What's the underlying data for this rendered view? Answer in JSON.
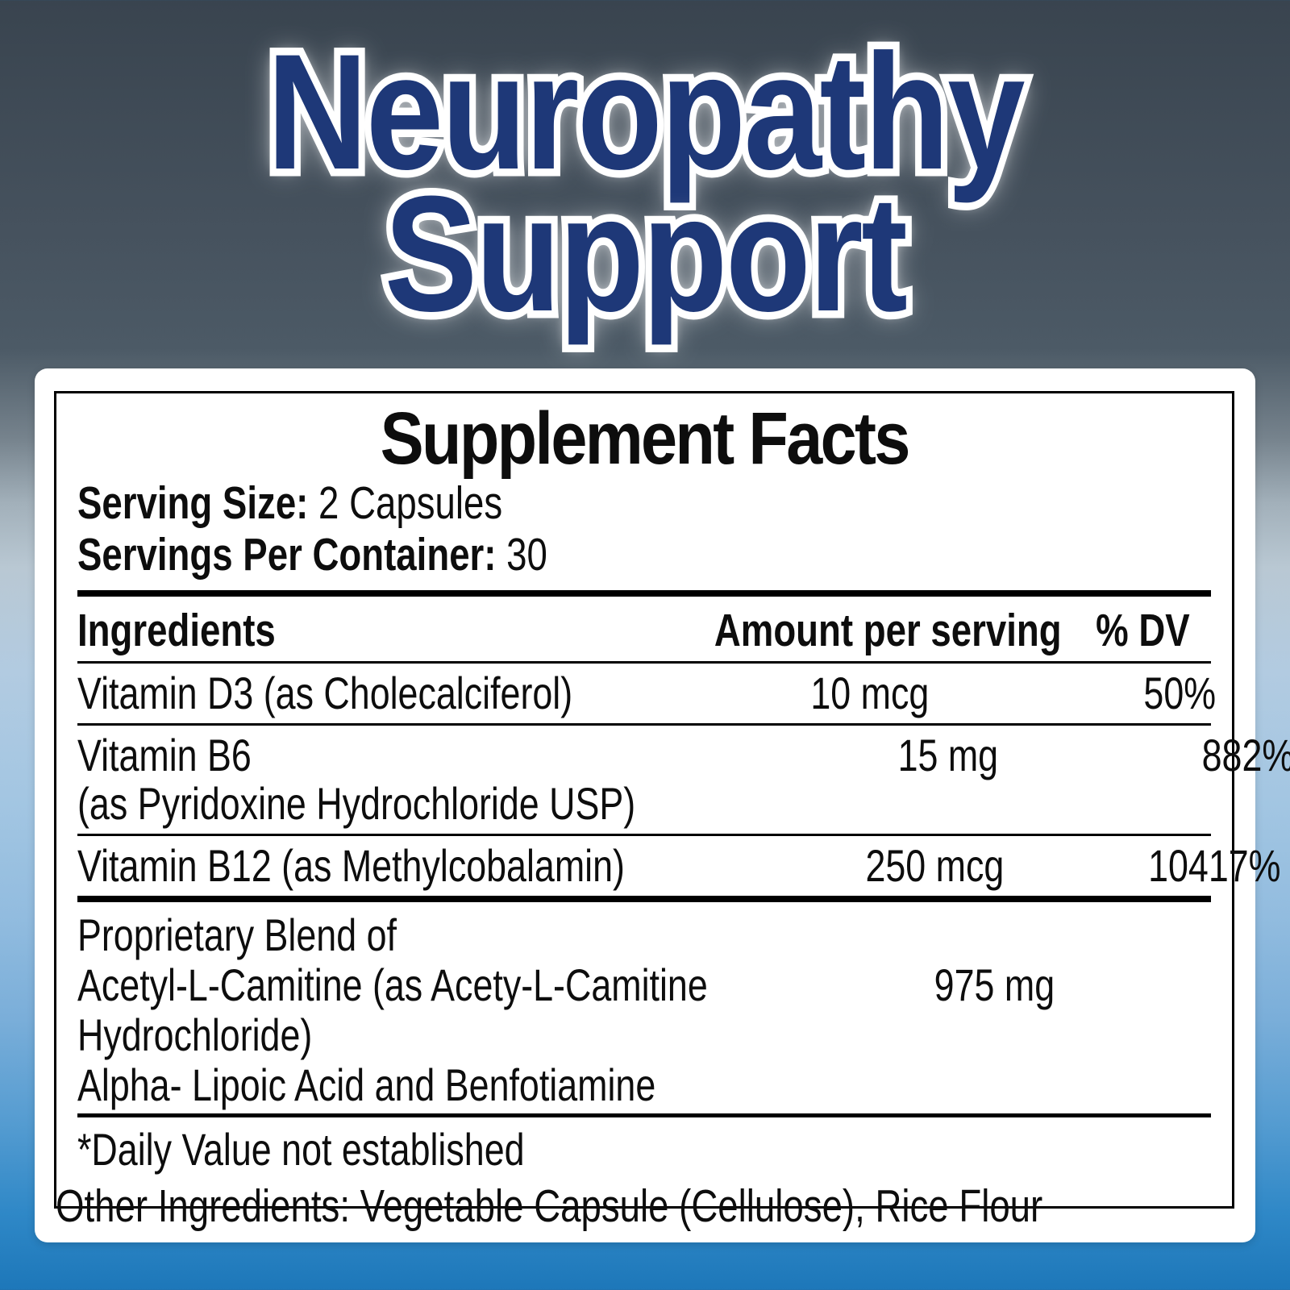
{
  "title": {
    "line1": "Neuropathy",
    "line2": "Support"
  },
  "colors": {
    "title_blue": "#1e3878",
    "title_outline": "#ffffff",
    "bottom_blue": "#1d77b9",
    "panel_bg": "#ffffff",
    "text": "#0d0d0d"
  },
  "panel": {
    "heading": "Supplement Facts",
    "serving_size_label": "Serving Size:",
    "serving_size_value": "2 Capsules",
    "servings_per_container_label": "Servings Per Container:",
    "servings_per_container_value": "30",
    "columns": {
      "ingredients": "Ingredients",
      "amount": "Amount per serving",
      "dv": "% DV"
    },
    "rows": [
      {
        "name": "Vitamin D3 (as Cholecalciferol)",
        "name2": "",
        "amount": "10 mcg",
        "dv": "50%"
      },
      {
        "name": "Vitamin B6",
        "name2": "(as Pyridoxine Hydrochloride USP)",
        "amount": "15 mg",
        "dv": "882%"
      },
      {
        "name": "Vitamin B12 (as Methylcobalamin)",
        "name2": "",
        "amount": "250 mcg",
        "dv": "10417%"
      }
    ],
    "blend": {
      "line1": "Proprietary Blend of",
      "line2": "Acetyl-L-Camitine (as Acety-L-Camitine",
      "line3": "Hydrochloride)",
      "line4": "Alpha- Lipoic Acid and Benfotiamine",
      "amount": "975 mg",
      "dv": "*"
    },
    "footnote": "*Daily Value not established",
    "other_ingredients": "Other Ingredients: Vegetable Capsule (Cellulose), Rice Flour"
  }
}
